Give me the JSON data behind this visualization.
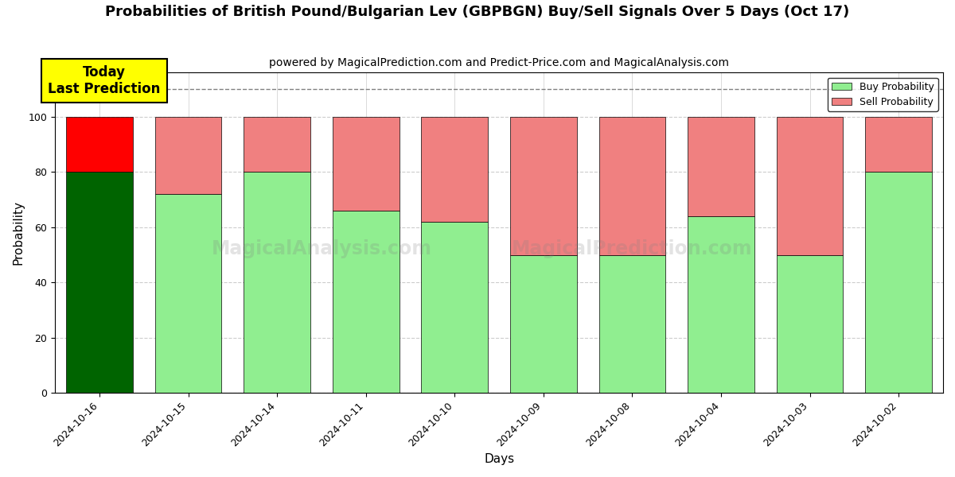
{
  "title": "Probabilities of British Pound/Bulgarian Lev (GBPBGN) Buy/Sell Signals Over 5 Days (Oct 17)",
  "subtitle": "powered by MagicalPrediction.com and Predict-Price.com and MagicalAnalysis.com",
  "xlabel": "Days",
  "ylabel": "Probability",
  "categories": [
    "2024-10-16",
    "2024-10-15",
    "2024-10-14",
    "2024-10-11",
    "2024-10-10",
    "2024-10-09",
    "2024-10-08",
    "2024-10-04",
    "2024-10-03",
    "2024-10-02"
  ],
  "buy_values": [
    80,
    72,
    80,
    66,
    62,
    50,
    50,
    64,
    50,
    80
  ],
  "sell_values": [
    20,
    28,
    20,
    34,
    38,
    50,
    50,
    36,
    50,
    20
  ],
  "today_index": 0,
  "buy_color_today": "#006400",
  "sell_color_today": "#FF0000",
  "buy_color_normal": "#90EE90",
  "sell_color_normal": "#F08080",
  "today_annotation": "Today\nLast Prediction",
  "today_annotation_bg": "#FFFF00",
  "watermark_text1": "MagicalAnalysis.com",
  "watermark_text2": "MagicalPrediction.com",
  "ylim": [
    0,
    116
  ],
  "yticks": [
    0,
    20,
    40,
    60,
    80,
    100
  ],
  "grid_color": "#cccccc",
  "background_color": "#ffffff",
  "legend_buy_label": "Buy Probability",
  "legend_sell_label": "Sell Probability",
  "bar_edge_color": "#000000",
  "bar_width": 0.75,
  "title_fontsize": 13,
  "subtitle_fontsize": 10,
  "axis_label_fontsize": 11,
  "tick_fontsize": 9,
  "dashed_line_y": 110
}
